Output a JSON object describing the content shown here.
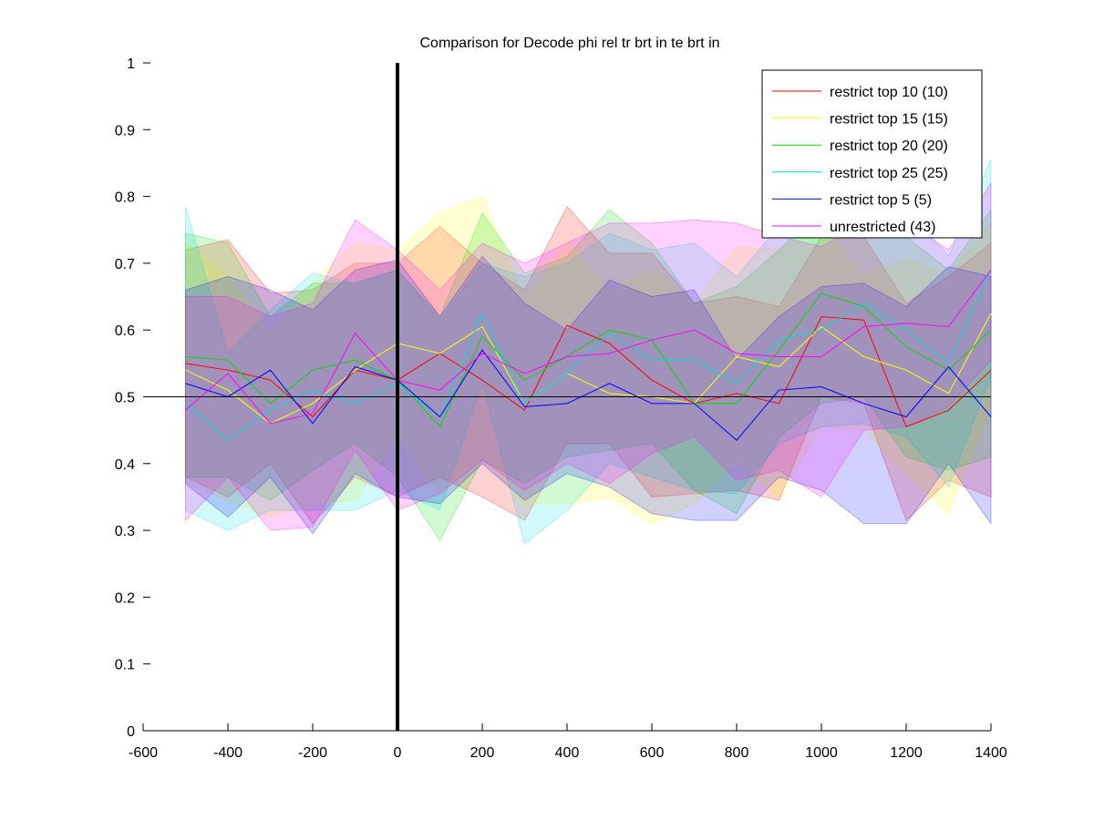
{
  "chart_data": {
    "type": "line",
    "title": "Comparison for Decode phi rel tr brt in te brt in",
    "xlabel": "",
    "ylabel": "",
    "xlim": [
      -600,
      1400
    ],
    "ylim": [
      0,
      1
    ],
    "x_ticks": [
      -600,
      -400,
      -200,
      0,
      200,
      400,
      600,
      800,
      1000,
      1200,
      1400
    ],
    "y_ticks": [
      0,
      0.1,
      0.2,
      0.3,
      0.4,
      0.5,
      0.6,
      0.7,
      0.8,
      0.9,
      1
    ],
    "x_tick_labels": [
      "-600",
      "-400",
      "-200",
      "0",
      "200",
      "400",
      "600",
      "800",
      "1000",
      "1200",
      "1400"
    ],
    "y_tick_labels": [
      "0",
      "0.1",
      "0.2",
      "0.3",
      "0.4",
      "0.5",
      "0.6",
      "0.7",
      "0.8",
      "0.9",
      "1"
    ],
    "reference_line_y": 0.5,
    "reference_line_x": 0,
    "legend_position": "top-right",
    "grid": false,
    "x": [
      -500,
      -400,
      -300,
      -200,
      -100,
      0,
      100,
      200,
      300,
      400,
      500,
      600,
      700,
      800,
      900,
      1000,
      1100,
      1200,
      1300,
      1400
    ],
    "series": [
      {
        "name": "restrict top 10 (10)",
        "color": "#ff0000",
        "values": [
          0.55,
          0.54,
          0.525,
          0.47,
          0.54,
          0.525,
          0.565,
          0.525,
          0.48,
          0.607,
          0.58,
          0.525,
          0.49,
          0.505,
          0.49,
          0.62,
          0.615,
          0.455,
          0.48,
          0.54
        ],
        "upper": [
          0.72,
          0.735,
          0.655,
          0.66,
          0.7,
          0.7,
          0.755,
          0.7,
          0.66,
          0.785,
          0.715,
          0.715,
          0.64,
          0.65,
          0.635,
          0.74,
          0.74,
          0.64,
          0.68,
          0.73
        ],
        "lower": [
          0.38,
          0.35,
          0.4,
          0.31,
          0.38,
          0.35,
          0.38,
          0.35,
          0.315,
          0.43,
          0.43,
          0.35,
          0.355,
          0.36,
          0.345,
          0.5,
          0.49,
          0.315,
          0.375,
          0.35
        ]
      },
      {
        "name": "restrict top 15 (15)",
        "color": "#ffff00",
        "values": [
          0.54,
          0.51,
          0.46,
          0.49,
          0.54,
          0.58,
          0.565,
          0.605,
          0.49,
          0.535,
          0.505,
          0.5,
          0.49,
          0.56,
          0.545,
          0.605,
          0.56,
          0.54,
          0.505,
          0.625
        ],
        "upper": [
          0.73,
          0.68,
          0.595,
          0.67,
          0.73,
          0.72,
          0.775,
          0.8,
          0.645,
          0.73,
          0.66,
          0.69,
          0.64,
          0.725,
          0.72,
          0.76,
          0.68,
          0.705,
          0.685,
          0.76
        ],
        "lower": [
          0.37,
          0.345,
          0.32,
          0.34,
          0.345,
          0.44,
          0.355,
          0.41,
          0.34,
          0.34,
          0.35,
          0.31,
          0.34,
          0.405,
          0.35,
          0.455,
          0.45,
          0.385,
          0.325,
          0.49
        ]
      },
      {
        "name": "restrict top 20 (20)",
        "color": "#00dd00",
        "values": [
          0.56,
          0.555,
          0.49,
          0.54,
          0.555,
          0.525,
          0.455,
          0.59,
          0.525,
          0.56,
          0.6,
          0.585,
          0.49,
          0.49,
          0.57,
          0.655,
          0.635,
          0.575,
          0.54,
          0.6
        ],
        "upper": [
          0.745,
          0.73,
          0.62,
          0.67,
          0.67,
          0.69,
          0.62,
          0.775,
          0.685,
          0.71,
          0.78,
          0.73,
          0.64,
          0.665,
          0.72,
          0.78,
          0.76,
          0.74,
          0.69,
          0.78
        ],
        "lower": [
          0.38,
          0.38,
          0.345,
          0.39,
          0.43,
          0.38,
          0.285,
          0.405,
          0.37,
          0.41,
          0.42,
          0.43,
          0.36,
          0.325,
          0.44,
          0.49,
          0.5,
          0.41,
          0.39,
          0.41
        ]
      },
      {
        "name": "restrict top 25 (25)",
        "color": "#00dddd",
        "values": [
          0.49,
          0.435,
          0.48,
          0.51,
          0.49,
          0.52,
          0.47,
          0.625,
          0.49,
          0.535,
          0.595,
          0.555,
          0.555,
          0.52,
          0.585,
          0.6,
          0.64,
          0.6,
          0.55,
          0.69
        ],
        "upper": [
          0.785,
          0.565,
          0.63,
          0.685,
          0.67,
          0.69,
          0.615,
          0.7,
          0.68,
          0.7,
          0.745,
          0.72,
          0.73,
          0.68,
          0.755,
          0.79,
          0.835,
          0.785,
          0.71,
          0.855
        ],
        "lower": [
          0.33,
          0.3,
          0.33,
          0.33,
          0.33,
          0.36,
          0.33,
          0.52,
          0.28,
          0.33,
          0.4,
          0.38,
          0.36,
          0.355,
          0.43,
          0.455,
          0.46,
          0.44,
          0.365,
          0.53
        ]
      },
      {
        "name": "restrict top 5 (5)",
        "color": "#0000ff",
        "values": [
          0.52,
          0.5,
          0.54,
          0.46,
          0.545,
          0.525,
          0.47,
          0.57,
          0.485,
          0.49,
          0.52,
          0.49,
          0.49,
          0.435,
          0.51,
          0.515,
          0.49,
          0.47,
          0.545,
          0.47
        ],
        "upper": [
          0.66,
          0.68,
          0.66,
          0.63,
          0.69,
          0.705,
          0.62,
          0.71,
          0.64,
          0.6,
          0.675,
          0.65,
          0.66,
          0.555,
          0.62,
          0.665,
          0.67,
          0.635,
          0.695,
          0.68
        ],
        "lower": [
          0.37,
          0.32,
          0.38,
          0.295,
          0.385,
          0.35,
          0.34,
          0.4,
          0.345,
          0.385,
          0.365,
          0.325,
          0.315,
          0.315,
          0.38,
          0.36,
          0.31,
          0.31,
          0.4,
          0.31
        ]
      },
      {
        "name": "unrestricted (43)",
        "color": "#ff00ff",
        "values": [
          0.48,
          0.535,
          0.46,
          0.475,
          0.595,
          0.525,
          0.51,
          0.565,
          0.535,
          0.56,
          0.565,
          0.585,
          0.6,
          0.565,
          0.56,
          0.56,
          0.605,
          0.61,
          0.605,
          0.69
        ],
        "upper": [
          0.65,
          0.65,
          0.62,
          0.64,
          0.765,
          0.72,
          0.66,
          0.73,
          0.7,
          0.73,
          0.76,
          0.76,
          0.765,
          0.76,
          0.74,
          0.725,
          0.76,
          0.76,
          0.72,
          0.82
        ],
        "lower": [
          0.315,
          0.38,
          0.3,
          0.305,
          0.42,
          0.33,
          0.355,
          0.405,
          0.36,
          0.4,
          0.37,
          0.415,
          0.44,
          0.375,
          0.39,
          0.35,
          0.45,
          0.455,
          0.485,
          0.555
        ]
      }
    ]
  }
}
